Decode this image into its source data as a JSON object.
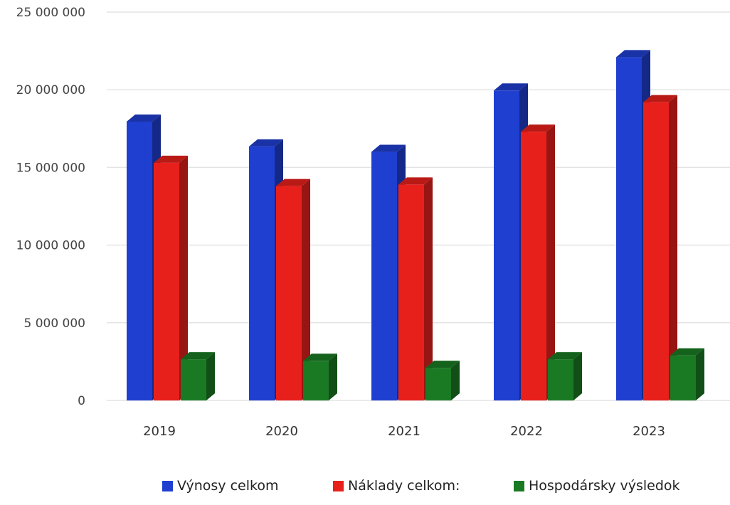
{
  "chart_data": {
    "type": "bar",
    "categories": [
      "2019",
      "2020",
      "2021",
      "2022",
      "2023"
    ],
    "series": [
      {
        "name": "Výnosy celkom",
        "color": "#1f3fd0",
        "values": [
          17950000,
          16350000,
          16000000,
          19950000,
          22100000
        ]
      },
      {
        "name": "Náklady celkom:",
        "color": "#e8201c",
        "values": [
          15300000,
          13800000,
          13900000,
          17300000,
          19200000
        ]
      },
      {
        "name": "Hospodársky výsledok",
        "color": "#1a7a24",
        "values": [
          2650000,
          2550000,
          2100000,
          2650000,
          2900000
        ]
      }
    ],
    "ylim": [
      0,
      25000000
    ],
    "yticks": [
      "0",
      "5 000 000",
      "10 000 000",
      "15 000 000",
      "20 000 000",
      "25 000 000"
    ],
    "ytick_values": [
      0,
      5000000,
      10000000,
      15000000,
      20000000,
      25000000
    ],
    "grid": true,
    "legend_position": "bottom"
  }
}
